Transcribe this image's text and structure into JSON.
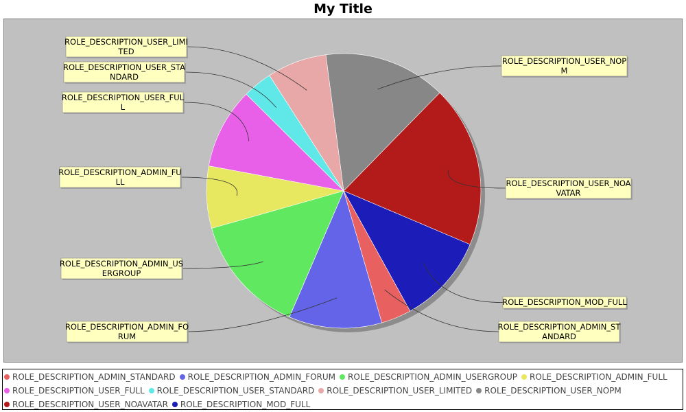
{
  "chart_data": {
    "type": "pie",
    "title": "My Title",
    "slices": [
      {
        "name": "ROLE_DESCRIPTION_USER_NOPM",
        "value": 15.0,
        "color": "#878787",
        "label_lines": [
          "ROLE_DESCRIPTION_USER_NOP",
          "M"
        ]
      },
      {
        "name": "ROLE_DESCRIPTION_USER_NOAVATAR",
        "value": 19.8,
        "color": "#b31b1b",
        "label_lines": [
          "ROLE_DESCRIPTION_USER_NOA",
          "VATAR"
        ]
      },
      {
        "name": "ROLE_DESCRIPTION_MOD_FULL",
        "value": 11.0,
        "color": "#1c1cb8",
        "label_lines": [
          "ROLE_DESCRIPTION_MOD_FULL"
        ]
      },
      {
        "name": "ROLE_DESCRIPTION_ADMIN_STANDARD",
        "value": 3.7,
        "color": "#e86060",
        "label_lines": [
          "ROLE_DESCRIPTION_ADMIN_ST",
          "ANDARD"
        ]
      },
      {
        "name": "ROLE_DESCRIPTION_ADMIN_FORUM",
        "value": 11.4,
        "color": "#6464e8",
        "label_lines": [
          "ROLE_DESCRIPTION_ADMIN_FO",
          "RUM"
        ]
      },
      {
        "name": "ROLE_DESCRIPTION_ADMIN_USERGROUP",
        "value": 14.7,
        "color": "#60e860",
        "label_lines": [
          "ROLE_DESCRIPTION_ADMIN_US",
          "ERGROUP"
        ]
      },
      {
        "name": "ROLE_DESCRIPTION_ADMIN_FULL",
        "value": 7.6,
        "color": "#e8e860",
        "label_lines": [
          "ROLE_DESCRIPTION_ADMIN_FU",
          "LL"
        ]
      },
      {
        "name": "ROLE_DESCRIPTION_USER_FULL",
        "value": 9.9,
        "color": "#e860e8",
        "label_lines": [
          "ROLE_DESCRIPTION_USER_FUL",
          "L"
        ]
      },
      {
        "name": "ROLE_DESCRIPTION_USER_STANDARD",
        "value": 3.6,
        "color": "#60e8e8",
        "label_lines": [
          "ROLE_DESCRIPTION_USER_STA",
          "NDARD"
        ]
      },
      {
        "name": "ROLE_DESCRIPTION_USER_LIMITED",
        "value": 7.3,
        "color": "#e8a8a8",
        "label_lines": [
          "ROLE_DESCRIPTION_USER_LIMI",
          "TED"
        ]
      }
    ],
    "legend_placement": "bottom",
    "legend_rows": [
      [
        {
          "label": "ROLE_DESCRIPTION_ADMIN_STANDARD",
          "color": "#e86060"
        },
        {
          "label": "ROLE_DESCRIPTION_ADMIN_FORUM",
          "color": "#6464e8"
        },
        {
          "label": "ROLE_DESCRIPTION_ADMIN_USERGROUP",
          "color": "#60e860"
        },
        {
          "label": "ROLE_DESCRIPTION_ADMIN_FULL",
          "color": "#e8e860"
        }
      ],
      [
        {
          "label": "ROLE_DESCRIPTION_USER_FULL",
          "color": "#e860e8"
        },
        {
          "label": "ROLE_DESCRIPTION_USER_STANDARD",
          "color": "#60e8e8"
        },
        {
          "label": "ROLE_DESCRIPTION_USER_LIMITED",
          "color": "#e8a8a8"
        },
        {
          "label": "ROLE_DESCRIPTION_USER_NOPM",
          "color": "#878787"
        }
      ],
      [
        {
          "label": "ROLE_DESCRIPTION_USER_NOAVATAR",
          "color": "#b31b1b"
        },
        {
          "label": "ROLE_DESCRIPTION_MOD_FULL",
          "color": "#1c1cb8"
        }
      ]
    ],
    "colors": {
      "plot_background": "#c0c0c0",
      "label_background": "#ffffc0"
    }
  }
}
